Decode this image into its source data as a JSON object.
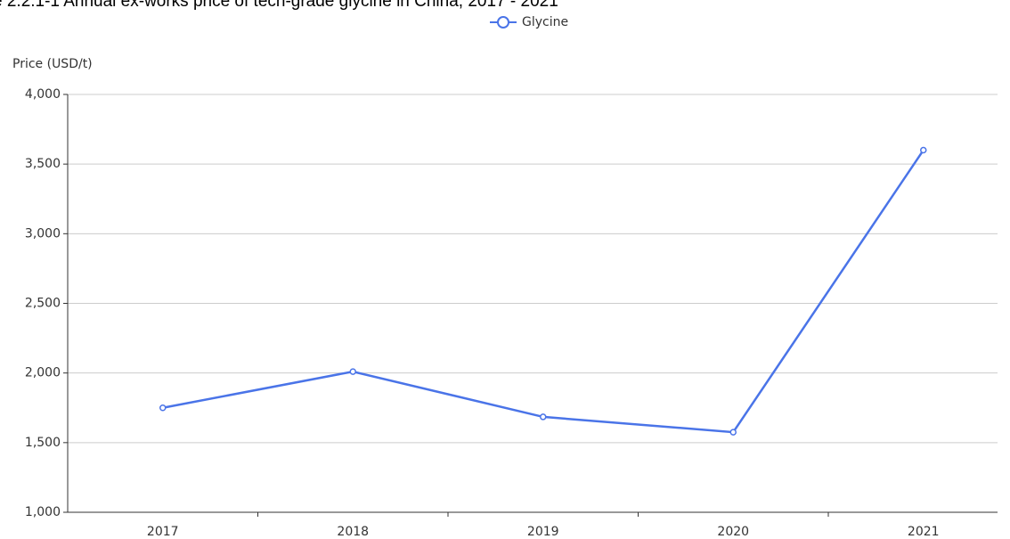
{
  "chart_data": {
    "type": "line",
    "title": "e 2.2.1-1 Annual ex-works price of tech-grade glycine in China, 2017 - 2021",
    "y_label": "Price (USD/t)",
    "categories": [
      "2017",
      "2018",
      "2019",
      "2020",
      "2021"
    ],
    "series": [
      {
        "name": "Glycine",
        "color": "#4a74e8",
        "values": [
          1750,
          2010,
          1685,
          1575,
          3600
        ]
      }
    ],
    "ylim": [
      1000,
      4000
    ],
    "yticks": [
      {
        "value": 1000,
        "label": "1,000"
      },
      {
        "value": 1500,
        "label": "1,500"
      },
      {
        "value": 2000,
        "label": "2,000"
      },
      {
        "value": 2500,
        "label": "2,500"
      },
      {
        "value": 3000,
        "label": "3,000"
      },
      {
        "value": 3500,
        "label": "3,500"
      },
      {
        "value": 4000,
        "label": "4,000"
      }
    ],
    "grid": true,
    "legend": "top"
  }
}
